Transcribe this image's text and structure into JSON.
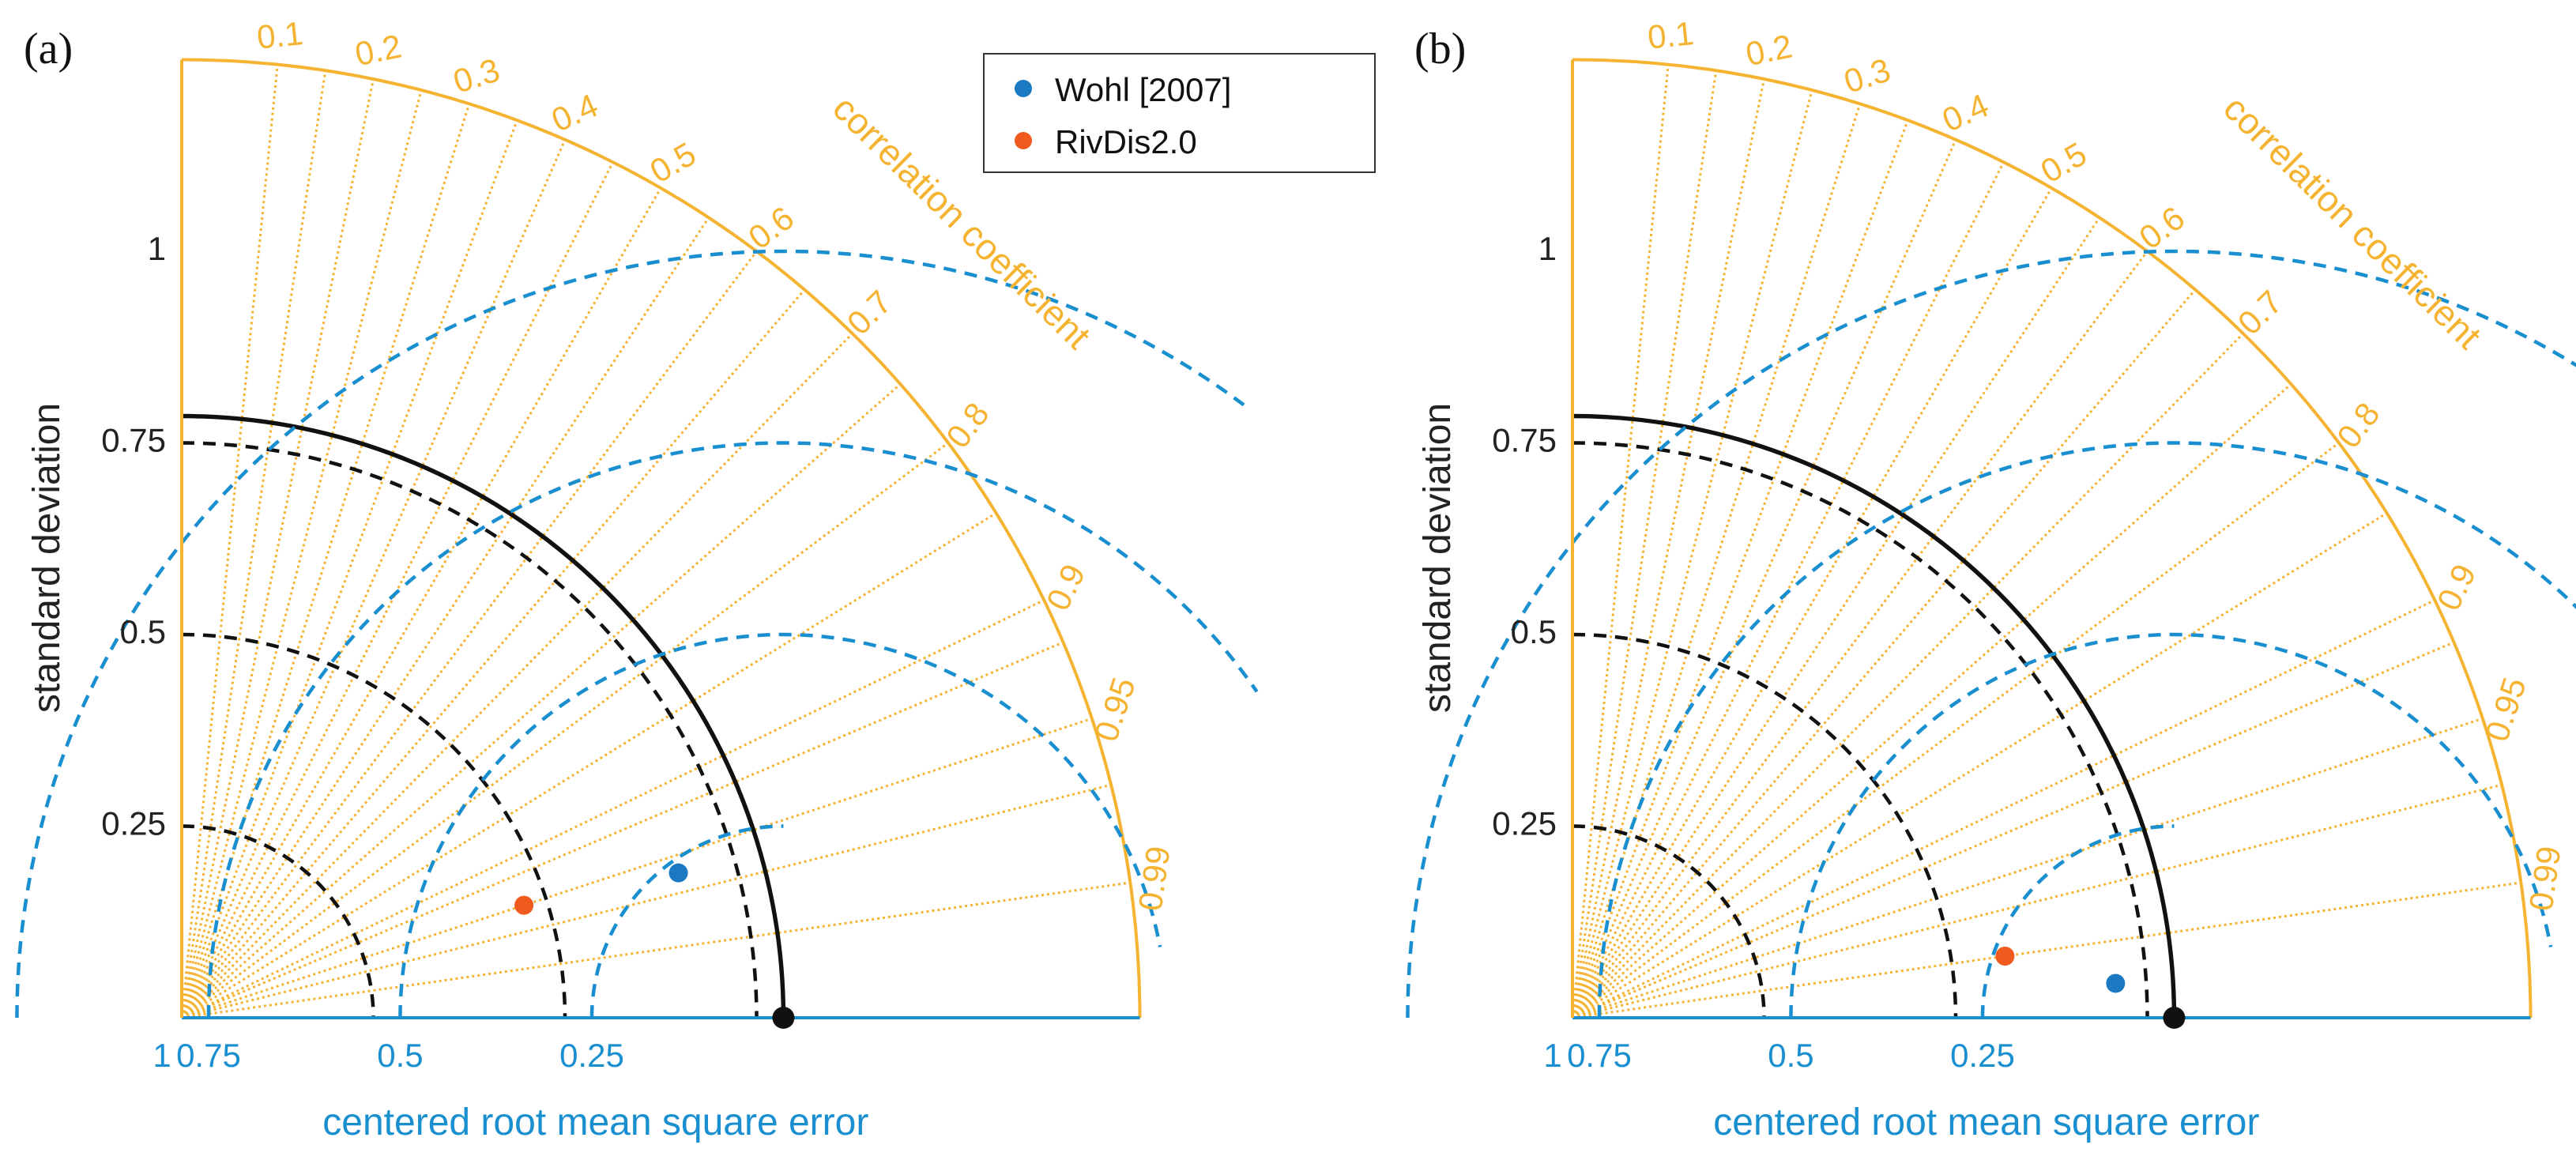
{
  "chart_data": [
    {
      "type": "scatter",
      "subtype": "taylor-diagram",
      "panel_label": "(a)",
      "reference_std": 0.785,
      "rmse_origin_label": "1",
      "ylabel": "standard deviation",
      "xlabel": "centered root mean square error",
      "corr_axis_label": "correlation coefficient",
      "std_ticks": [
        0.25,
        0.5,
        0.75,
        1
      ],
      "std_tick_labels": [
        "0.25",
        "0.5",
        "0.75",
        "1"
      ],
      "std_max": 1.25,
      "corr_ticks": [
        0.1,
        0.2,
        0.3,
        0.4,
        0.5,
        0.6,
        0.7,
        0.8,
        0.9,
        0.95,
        0.99
      ],
      "corr_tick_labels": [
        "0.1",
        "0.2",
        "0.3",
        "0.4",
        "0.5",
        "0.6",
        "0.7",
        "0.8",
        "0.9",
        "0.95",
        "0.99"
      ],
      "rmse_ticks": [
        0.75,
        0.5,
        0.25
      ],
      "rmse_tick_labels": [
        "0.75",
        "0.5",
        "0.25"
      ],
      "legend": {
        "visible": true,
        "location": "top-right",
        "entries": [
          {
            "name": "Wohl [2007]",
            "color": "#1a79c0"
          },
          {
            "name": "RivDis2.0",
            "color": "#f05a1e"
          }
        ]
      },
      "points": [
        {
          "name": "Wohl [2007]",
          "std": 0.675,
          "corr": 0.96,
          "color": "#1a79c0"
        },
        {
          "name": "RivDis2.0",
          "std": 0.47,
          "corr": 0.95,
          "color": "#f05a1e"
        }
      ]
    },
    {
      "type": "scatter",
      "subtype": "taylor-diagram",
      "panel_label": "(b)",
      "reference_std": 0.785,
      "rmse_origin_label": "1",
      "ylabel": "standard deviation",
      "xlabel": "centered root mean square error",
      "corr_axis_label": "correlation coefficient",
      "std_ticks": [
        0.25,
        0.5,
        0.75,
        1
      ],
      "std_tick_labels": [
        "0.25",
        "0.5",
        "0.75",
        "1"
      ],
      "std_max": 1.25,
      "corr_ticks": [
        0.1,
        0.2,
        0.3,
        0.4,
        0.5,
        0.6,
        0.7,
        0.8,
        0.9,
        0.95,
        0.99
      ],
      "corr_tick_labels": [
        "0.1",
        "0.2",
        "0.3",
        "0.4",
        "0.5",
        "0.6",
        "0.7",
        "0.8",
        "0.9",
        "0.95",
        "0.99"
      ],
      "rmse_ticks": [
        0.75,
        0.5,
        0.25
      ],
      "rmse_tick_labels": [
        "0.75",
        "0.5",
        "0.25"
      ],
      "legend": {
        "visible": false,
        "location": "none",
        "entries": []
      },
      "points": [
        {
          "name": "Wohl [2007]",
          "std": 0.71,
          "corr": 0.998,
          "color": "#1a79c0"
        },
        {
          "name": "RivDis2.0",
          "std": 0.57,
          "corr": 0.99,
          "color": "#f05a1e"
        }
      ]
    }
  ]
}
